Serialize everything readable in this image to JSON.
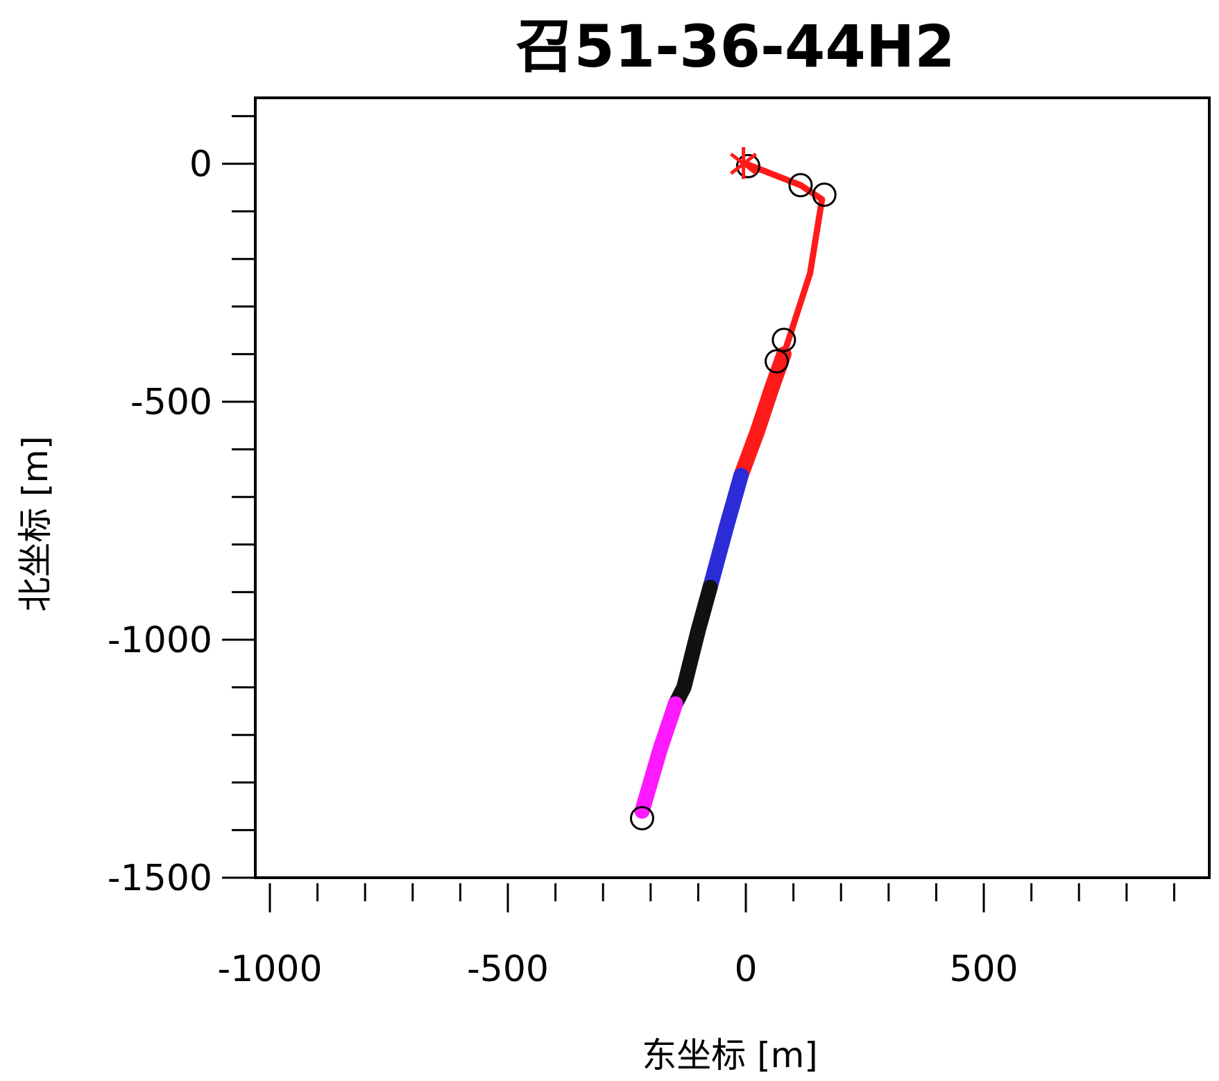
{
  "chart_data": {
    "type": "line",
    "title": "召51-36-44H2",
    "xlabel": "东坐标 [m]",
    "ylabel": "北坐标 [m]",
    "xlim": [
      -1010,
      980
    ],
    "ylim": [
      -1520,
      140
    ],
    "x_ticks": [
      -1000,
      -500,
      0,
      500
    ],
    "x_tick_labels": [
      "-1000",
      "-500",
      "0",
      "500"
    ],
    "x_minor_step": 100,
    "y_ticks": [
      0,
      -500,
      -1000,
      -1500
    ],
    "y_tick_labels": [
      "0",
      "-500",
      "-1000",
      "-1500"
    ],
    "y_minor_step": 100,
    "grid": false,
    "legend": "none",
    "series": [
      {
        "color": "#ff1a1a",
        "width": "thin",
        "points": [
          [
            0,
            0
          ],
          [
            115,
            -45
          ],
          [
            160,
            -75
          ],
          [
            135,
            -230
          ],
          [
            80,
            -400
          ]
        ]
      },
      {
        "color": "#ff1a1a",
        "width": "thick",
        "points": [
          [
            80,
            -400
          ],
          [
            55,
            -470
          ],
          [
            25,
            -560
          ],
          [
            -10,
            -655
          ]
        ]
      },
      {
        "color": "#2b2bd8",
        "width": "thick",
        "points": [
          [
            -10,
            -655
          ],
          [
            -40,
            -760
          ],
          [
            -75,
            -890
          ]
        ]
      },
      {
        "color": "#111111",
        "width": "thick",
        "points": [
          [
            -75,
            -890
          ],
          [
            -100,
            -980
          ],
          [
            -130,
            -1100
          ],
          [
            -148,
            -1135
          ]
        ]
      },
      {
        "color": "#ff19ff",
        "width": "thick",
        "points": [
          [
            -148,
            -1135
          ],
          [
            -180,
            -1230
          ],
          [
            -218,
            -1360
          ]
        ]
      }
    ],
    "markers": [
      {
        "shape": "circle",
        "points": [
          [
            5,
            -5
          ],
          [
            115,
            -45
          ],
          [
            165,
            -65
          ],
          [
            80,
            -370
          ],
          [
            65,
            -415
          ],
          [
            -218,
            -1375
          ]
        ]
      },
      {
        "shape": "cross",
        "points": [
          [
            -5,
            0
          ]
        ]
      }
    ]
  }
}
